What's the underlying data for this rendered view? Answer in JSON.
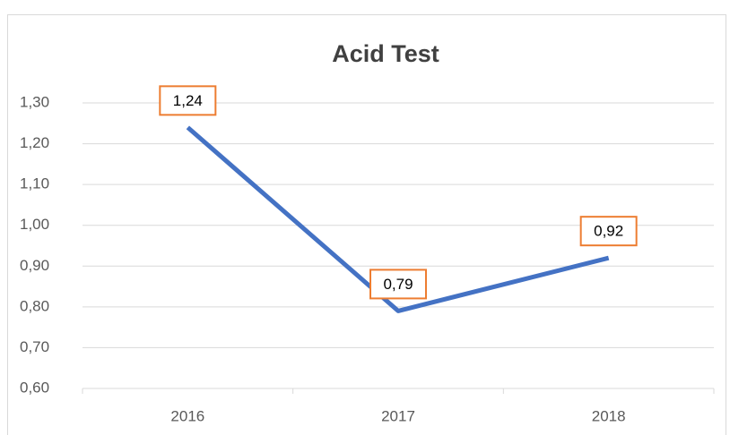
{
  "chart_data": {
    "type": "line",
    "title": "Acid Test",
    "categories": [
      "2016",
      "2017",
      "2018"
    ],
    "values": [
      1.24,
      0.79,
      0.92
    ],
    "value_labels": [
      "1,24",
      "0,79",
      "0,92"
    ],
    "color": "#4472c4",
    "label_border_color": "#ed7d31",
    "ylim": [
      0.6,
      1.3
    ],
    "yticks": [
      {
        "value": 0.6,
        "label": "0,60"
      },
      {
        "value": 0.7,
        "label": "0,70"
      },
      {
        "value": 0.8,
        "label": "0,80"
      },
      {
        "value": 0.9,
        "label": "0,90"
      },
      {
        "value": 1.0,
        "label": "1,00"
      },
      {
        "value": 1.1,
        "label": "1,10"
      },
      {
        "value": 1.2,
        "label": "1,20"
      },
      {
        "value": 1.3,
        "label": "1,30"
      }
    ],
    "grid": true
  }
}
